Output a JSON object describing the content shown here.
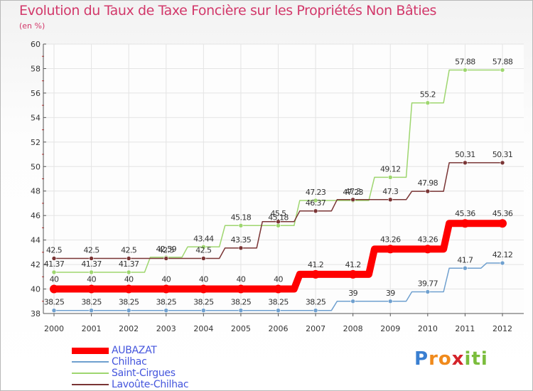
{
  "title": "Evolution du Taux de Taxe Foncière sur les Propriétés Non Bâties",
  "unit": "(en %)",
  "logo": {
    "letters": [
      "P",
      "r",
      "o",
      "x",
      "i",
      "t",
      "i"
    ],
    "colors": [
      "#3a7fd1",
      "#f08a1c",
      "#f08a1c",
      "#d4232a",
      "#7bbd3c",
      "#7bbd3c",
      "#7bbd3c"
    ]
  },
  "chart_data": {
    "type": "line",
    "x": [
      "2000",
      "2001",
      "2002",
      "2003",
      "2004",
      "2005",
      "2006",
      "2007",
      "2008",
      "2009",
      "2010",
      "2011",
      "2012"
    ],
    "ylim": [
      38,
      60
    ],
    "yticks": [
      "38",
      "40",
      "42",
      "44",
      "46",
      "48",
      "50",
      "52",
      "54",
      "56",
      "58",
      "60"
    ],
    "grid": true,
    "legend_placement": "bottom-left",
    "series": [
      {
        "name": "AUBAZAT",
        "color": "#ff0000",
        "values": [
          40,
          40,
          40,
          40,
          40,
          40,
          40,
          41.2,
          41.2,
          43.26,
          43.26,
          45.36,
          45.36
        ],
        "labels": [
          "40",
          "40",
          "40",
          "40",
          "40",
          "40",
          "40",
          "41.2",
          "41.2",
          "43.26",
          "43.26",
          "45.36",
          "45.36"
        ]
      },
      {
        "name": "Chilhac",
        "color": "#6fa0cf",
        "values": [
          38.25,
          38.25,
          38.25,
          38.25,
          38.25,
          38.25,
          38.25,
          38.25,
          39,
          39,
          39.77,
          41.7,
          42.12
        ],
        "labels": [
          "38.25",
          "38.25",
          "38.25",
          "38.25",
          "38.25",
          "38.25",
          "38.25",
          "38.25",
          "39",
          "39",
          "39.77",
          "41.7",
          "42.12"
        ]
      },
      {
        "name": "Saint-Cirgues",
        "color": "#9ed66f",
        "values": [
          41.37,
          41.37,
          41.37,
          42.59,
          43.44,
          45.18,
          45.18,
          47.23,
          47.23,
          49.12,
          55.2,
          57.88,
          57.88
        ],
        "labels": [
          "41.37",
          "41.37",
          "41.37",
          "42.59",
          "43.44",
          "45.18",
          "45.18",
          "47.23",
          "47.23",
          "49.12",
          "55.2",
          "57.88",
          "57.88"
        ]
      },
      {
        "name": "Lavoûte-Chilhac",
        "color": "#7a3535",
        "values": [
          42.5,
          42.5,
          42.5,
          42.5,
          42.5,
          43.35,
          45.5,
          46.37,
          47.3,
          47.3,
          47.98,
          50.31,
          50.31
        ],
        "labels": [
          "42.5",
          "42.5",
          "42.5",
          "42.5",
          "42.5",
          "43.35",
          "45.5",
          "46.37",
          "47.3",
          "47.3",
          "47.98",
          "50.31",
          "50.31"
        ]
      }
    ]
  }
}
